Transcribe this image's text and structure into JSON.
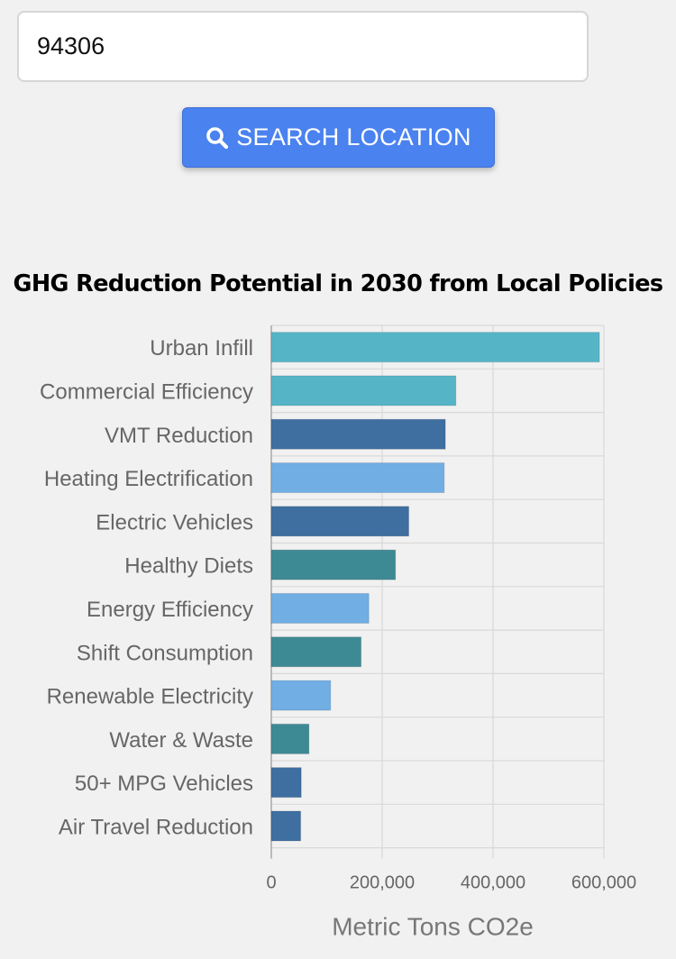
{
  "search": {
    "value": "94306",
    "button_label": "SEARCH LOCATION",
    "button_icon": "search-icon"
  },
  "colors": {
    "button": "#4a82ef",
    "background": "#f1f1f1",
    "label_text": "#666666"
  },
  "chart_data": {
    "type": "bar",
    "orientation": "horizontal",
    "title": "GHG Reduction Potential in 2030 from Local Policies",
    "xlabel": "Metric Tons CO2e",
    "ylabel": "",
    "xlim": [
      0,
      600000
    ],
    "xticks": [
      0,
      200000,
      400000,
      600000
    ],
    "xtick_labels": [
      "0",
      "200,000",
      "400,000",
      "600,000"
    ],
    "grid": true,
    "categories": [
      "Urban Infill",
      "Commercial Efficiency",
      "VMT Reduction",
      "Heating Electrification",
      "Electric Vehicles",
      "Healthy Diets",
      "Energy Efficiency",
      "Shift Consumption",
      "Renewable Electricity",
      "Water & Waste",
      "50+ MPG Vehicles",
      "Air Travel Reduction"
    ],
    "values": [
      592000,
      333000,
      314000,
      312000,
      248000,
      224000,
      176000,
      162000,
      107000,
      68000,
      54000,
      53000
    ],
    "bar_colors": [
      "#55b5c7",
      "#55b5c7",
      "#3e6fa0",
      "#70aee4",
      "#3e6fa0",
      "#3e8a94",
      "#70aee4",
      "#3e8a94",
      "#70aee4",
      "#3e8a94",
      "#3e6fa0",
      "#3e6fa0"
    ]
  }
}
